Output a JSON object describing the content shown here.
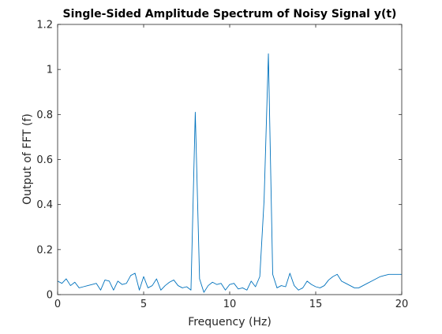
{
  "chart_data": {
    "type": "line",
    "title": "Single-Sided Amplitude Spectrum of Noisy Signal y(t)",
    "xlabel": "Frequency (Hz)",
    "ylabel": "Output of FFT (f)",
    "xlim": [
      0,
      20
    ],
    "ylim": [
      0,
      1.2
    ],
    "xticks": [
      0,
      5,
      10,
      15,
      20
    ],
    "xtick_labels": [
      "0",
      "5",
      "10",
      "15",
      "20"
    ],
    "yticks": [
      0,
      0.2,
      0.4,
      0.6,
      0.8,
      1,
      1.2
    ],
    "ytick_labels": [
      "0",
      "0.2",
      "0.4",
      "0.6",
      "0.8",
      "1",
      "1.2"
    ],
    "grid": false,
    "line_color": "#0072BD",
    "series": [
      {
        "x": [
          0,
          0.25,
          0.5,
          0.75,
          1,
          1.25,
          1.5,
          1.75,
          2,
          2.25,
          2.5,
          2.75,
          3,
          3.25,
          3.5,
          3.75,
          4,
          4.25,
          4.5,
          4.75,
          5,
          5.25,
          5.5,
          5.75,
          6,
          6.25,
          6.5,
          6.75,
          7,
          7.25,
          7.5,
          7.75,
          8,
          8.25,
          8.5,
          8.75,
          9,
          9.25,
          9.5,
          9.75,
          10,
          10.25,
          10.5,
          10.75,
          11,
          11.25,
          11.5,
          11.75,
          12,
          12.25,
          12.5,
          12.75,
          13,
          13.25,
          13.5,
          13.75,
          14,
          14.25,
          14.5,
          14.75,
          15,
          15.25,
          15.5,
          15.75,
          16,
          16.25,
          16.5,
          16.75,
          17,
          17.25,
          17.5,
          17.75,
          18,
          18.25,
          18.5,
          18.75,
          19,
          19.25,
          19.5,
          19.75,
          20
        ],
        "y": [
          0.06,
          0.05,
          0.07,
          0.04,
          0.055,
          0.03,
          0.035,
          0.04,
          0.045,
          0.05,
          0.02,
          0.065,
          0.06,
          0.02,
          0.06,
          0.045,
          0.05,
          0.085,
          0.095,
          0.02,
          0.08,
          0.03,
          0.04,
          0.07,
          0.02,
          0.04,
          0.055,
          0.065,
          0.04,
          0.03,
          0.035,
          0.02,
          0.81,
          0.07,
          0.01,
          0.04,
          0.055,
          0.045,
          0.05,
          0.02,
          0.045,
          0.05,
          0.025,
          0.03,
          0.02,
          0.06,
          0.035,
          0.08,
          0.42,
          1.07,
          0.09,
          0.03,
          0.04,
          0.035,
          0.095,
          0.04,
          0.02,
          0.03,
          0.06,
          0.045,
          0.035,
          0.03,
          0.04,
          0.065,
          0.08,
          0.09,
          0.06,
          0.05,
          0.04,
          0.03,
          0.03,
          0.04,
          0.05,
          0.06,
          0.07,
          0.08,
          0.085,
          0.09,
          0.09,
          0.09,
          0.09
        ]
      }
    ]
  }
}
